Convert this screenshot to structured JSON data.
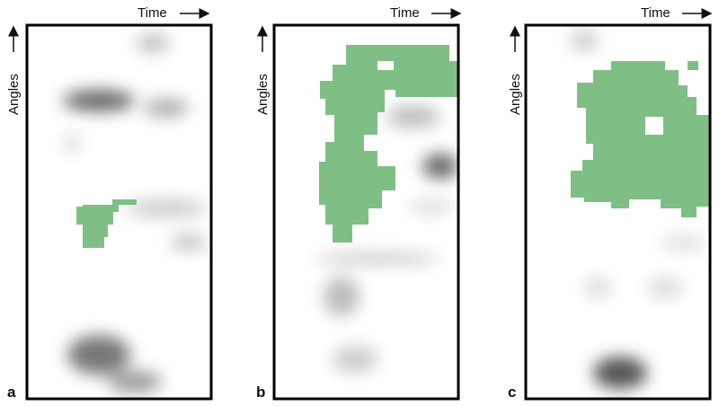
{
  "panels": [
    {
      "label": "a",
      "x_axis": "Time",
      "y_axis": "Angles"
    },
    {
      "label": "b",
      "x_axis": "Time",
      "y_axis": "Angles"
    },
    {
      "label": "c",
      "x_axis": "Time",
      "y_axis": "Angles"
    }
  ]
}
